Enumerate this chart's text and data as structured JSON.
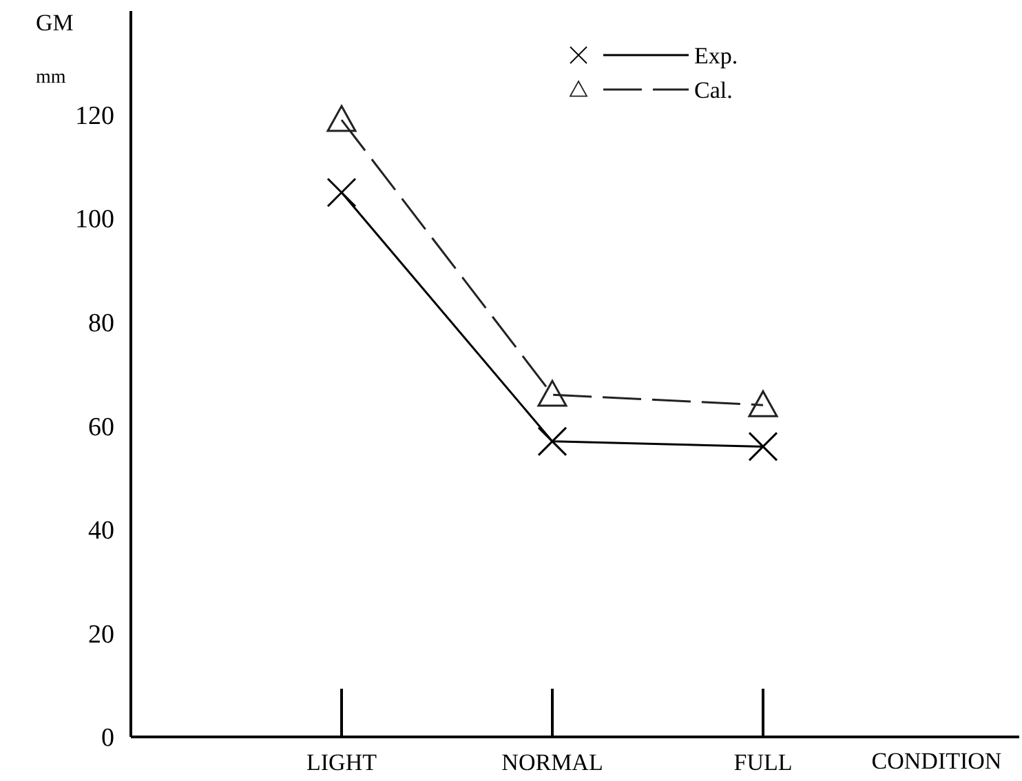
{
  "chart_data": {
    "type": "line",
    "xlabel": "CONDITION",
    "ylabel": "GM mm",
    "categories": [
      "LIGHT",
      "NORMAL",
      "FULL"
    ],
    "ylim": [
      0,
      140
    ],
    "yticks": [
      0,
      20,
      40,
      60,
      80,
      100,
      120
    ],
    "grid": false,
    "legend": "top right",
    "series": [
      {
        "name": "Exp.",
        "color": "#000000",
        "marker": "cross",
        "line_style": "solid",
        "values": [
          105,
          57,
          56
        ]
      },
      {
        "name": "Cal.",
        "color": "#222222",
        "marker": "triangle",
        "line_style": "dashed",
        "values": [
          119,
          66,
          64
        ]
      }
    ]
  }
}
